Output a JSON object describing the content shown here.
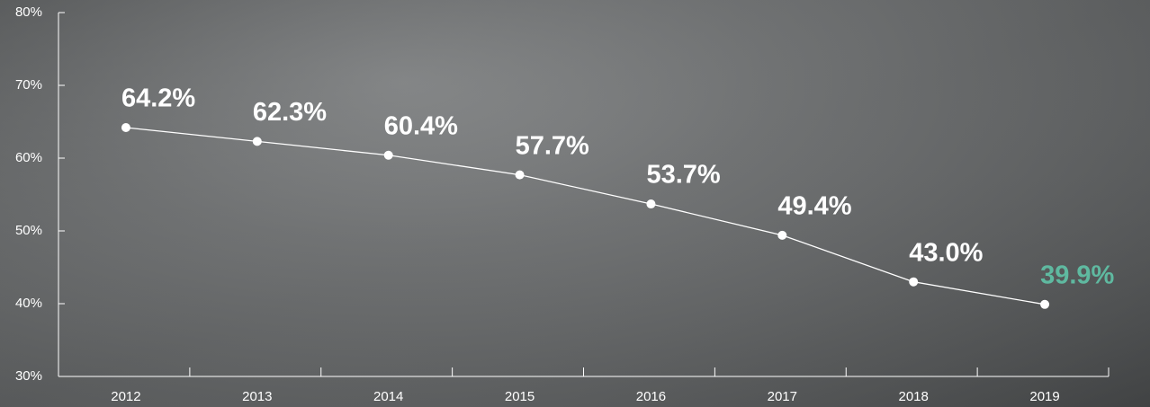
{
  "chart_data": {
    "type": "line",
    "categories": [
      "2012",
      "2013",
      "2014",
      "2015",
      "2016",
      "2017",
      "2018",
      "2019"
    ],
    "series": [
      {
        "color": "#ffffff",
        "values": [
          64.2,
          62.3,
          60.4,
          57.7,
          53.7,
          49.4,
          43.0,
          39.9
        ],
        "value_labels": [
          "64.2%",
          "62.3%",
          "60.4%",
          "57.7%",
          "53.7%",
          "49.4%",
          "43.0%",
          "39.9%"
        ],
        "value_label_colors": [
          "#ffffff",
          "#ffffff",
          "#ffffff",
          "#ffffff",
          "#ffffff",
          "#ffffff",
          "#ffffff",
          "#5fb9a0"
        ]
      }
    ],
    "ylim": [
      30,
      80
    ],
    "yticks": [
      {
        "value": 30,
        "label": "30%"
      },
      {
        "value": 40,
        "label": "40%"
      },
      {
        "value": 50,
        "label": "50%"
      },
      {
        "value": 60,
        "label": "60%"
      },
      {
        "value": 70,
        "label": "70%"
      },
      {
        "value": 80,
        "label": "80%"
      }
    ],
    "grid": false
  }
}
